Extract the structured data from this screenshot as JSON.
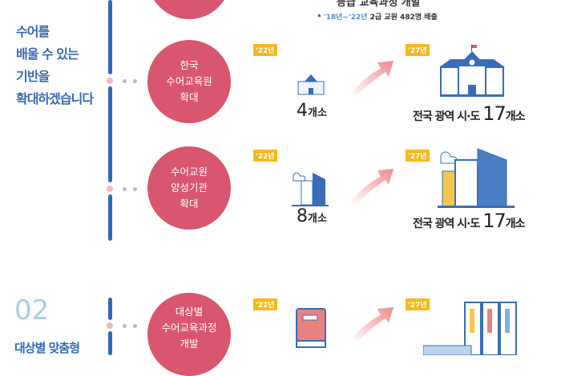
{
  "intro": {
    "heading_partial": "등급 교육과정 개발",
    "note_prefix": "* ",
    "note_years": "'18년~'22년",
    "note_rest": " 2급 교원 482명 배출"
  },
  "section1": {
    "lines": [
      "수어를",
      "배울 수 있는",
      "기반을",
      "확대하겠습니다"
    ]
  },
  "rows": [
    {
      "circle": "한국\n수어교육원\n확대",
      "from_year": "'22년",
      "to_year": "'27년",
      "from_num": "4",
      "from_unit": "개소",
      "to_prefix": "전국 광역 시·도 ",
      "to_num": "17",
      "to_unit": "개소",
      "icon_from": "small-school-icon",
      "icon_to": "large-school-icon"
    },
    {
      "circle": "수어교원\n양성기관\n확대",
      "from_year": "'22년",
      "to_year": "'27년",
      "from_num": "8",
      "from_unit": "개소",
      "to_prefix": "전국 광역 시·도 ",
      "to_num": "17",
      "to_unit": "개소",
      "icon_from": "small-building-icon",
      "icon_to": "large-building-icon"
    },
    {
      "circle": "대상별\n수어교육과정\n개발",
      "from_year": "'22년",
      "to_year": "'27년",
      "icon_from": "book-icon",
      "icon_to": "binders-icon"
    }
  ],
  "section2": {
    "number": "02",
    "title": "대상별 맞춤형"
  },
  "colors": {
    "blue": "#2f6bb3",
    "pink": "#d9566f",
    "tag": "#f7b81d",
    "light_blue": "#a9cde0"
  }
}
